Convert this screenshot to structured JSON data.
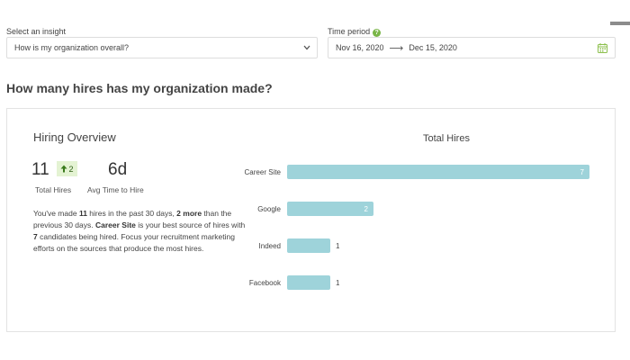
{
  "filters": {
    "insight_label": "Select an insight",
    "insight_value": "How is my organization overall?",
    "time_label": "Time period",
    "date_start": "Nov 16, 2020",
    "date_arrow": "⟶",
    "date_end": "Dec 15, 2020"
  },
  "page_heading": "How many hires has my organization made?",
  "overview": {
    "title": "Hiring Overview",
    "total_hires": "11",
    "total_hires_label": "Total Hires",
    "delta": "2",
    "avg_time": "6d",
    "avg_time_label": "Avg Time to Hire",
    "summary": {
      "p1": "You've made ",
      "b1": "11",
      "p2": " hires in the past 30 days, ",
      "b2": "2 more",
      "p3": " than the previous 30 days. ",
      "b3": "Career Site",
      "p4": " is your best source of hires with ",
      "b4": "7",
      "p5": " candidates being hired. Focus your recruitment marketing efforts on the sources that produce the most hires."
    }
  },
  "chart_data": {
    "type": "bar",
    "orientation": "horizontal",
    "title": "Total Hires",
    "categories": [
      "Career Site",
      "Google",
      "Indeed",
      "Facebook"
    ],
    "values": [
      7,
      2,
      1,
      1
    ],
    "xlim": [
      0,
      7
    ],
    "grid": false,
    "bar_color": "#9ed3da"
  },
  "colors": {
    "accent_green": "#7ab648",
    "badge_bg": "#e4f3d3",
    "bar": "#9ed3da"
  }
}
